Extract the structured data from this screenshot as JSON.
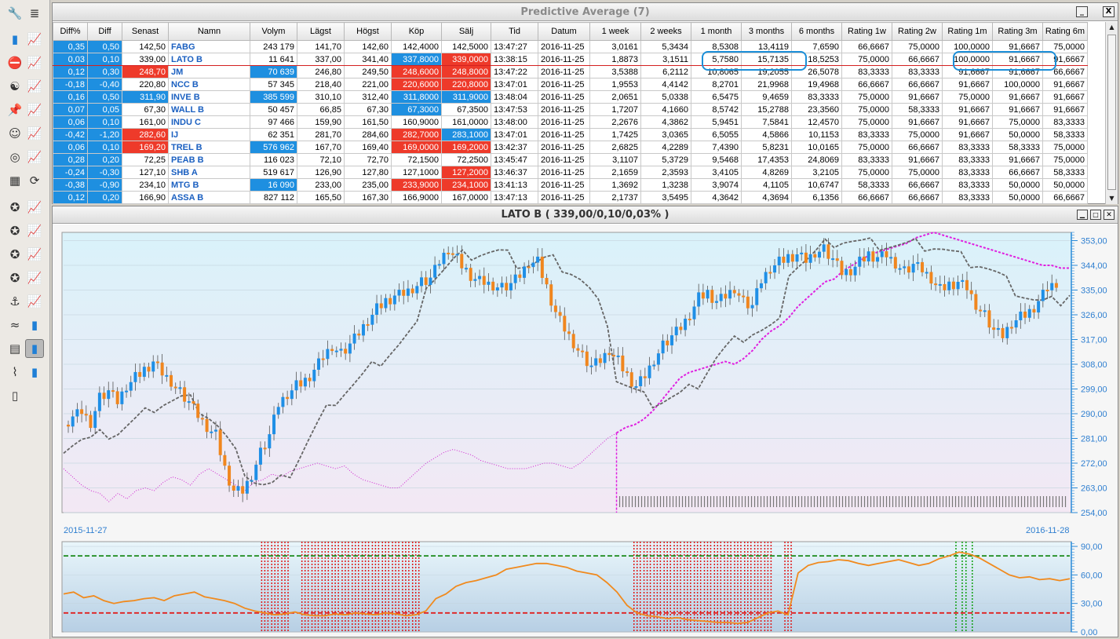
{
  "grid_window": {
    "title": "Predictive Average (7)",
    "minimize": "_",
    "close": "X"
  },
  "columns": [
    "Diff%",
    "Diff",
    "Senast",
    "Namn",
    "Volym",
    "Lägst",
    "Högst",
    "Köp",
    "Sälj",
    "Tid",
    "Datum",
    "1 week",
    "2 weeks",
    "1 month",
    "3 months",
    "6 months",
    "Rating 1w",
    "Rating 2w",
    "Rating 1m",
    "Rating 3m",
    "Rating 6m"
  ],
  "rows": [
    [
      "0,35",
      "0,50",
      "142,50",
      "FABG",
      "243 179",
      "141,70",
      "142,60",
      "142,4000",
      "142,5000",
      "13:47:27",
      "2016-11-25",
      "3,0161",
      "5,3434",
      "8,5308",
      "13,4119",
      "7,6590",
      "66,6667",
      "75,0000",
      "100,0000",
      "91,6667",
      "75,0000"
    ],
    [
      "0,03",
      "0,10",
      "339,00",
      "LATO B",
      "11 641",
      "337,00",
      "341,40",
      "337,8000",
      "339,0000",
      "13:38:15",
      "2016-11-25",
      "1,8873",
      "3,1511",
      "5,7580",
      "15,7135",
      "18,5253",
      "75,0000",
      "66,6667",
      "100,0000",
      "91,6667",
      "91,6667"
    ],
    [
      "0,12",
      "0,30",
      "248,70",
      "JM",
      "70 639",
      "246,80",
      "249,50",
      "248,6000",
      "248,8000",
      "13:47:22",
      "2016-11-25",
      "3,5388",
      "6,2112",
      "10,8065",
      "19,2055",
      "26,5078",
      "83,3333",
      "83,3333",
      "91,6667",
      "91,6667",
      "66,6667"
    ],
    [
      "-0,18",
      "-0,40",
      "220,80",
      "NCC B",
      "57 345",
      "218,40",
      "221,00",
      "220,6000",
      "220,8000",
      "13:47:01",
      "2016-11-25",
      "1,9553",
      "4,4142",
      "8,2701",
      "21,9968",
      "19,4968",
      "66,6667",
      "66,6667",
      "91,6667",
      "100,0000",
      "91,6667"
    ],
    [
      "0,16",
      "0,50",
      "311,90",
      "INVE B",
      "385 599",
      "310,10",
      "312,40",
      "311,8000",
      "311,9000",
      "13:48:04",
      "2016-11-25",
      "2,0651",
      "5,0338",
      "6,5475",
      "9,4659",
      "83,3333",
      "75,0000",
      "91,6667",
      "75,0000",
      "91,6667",
      "91,6667"
    ],
    [
      "0,07",
      "0,05",
      "67,30",
      "WALL B",
      "50 457",
      "66,85",
      "67,30",
      "67,3000",
      "67,3500",
      "13:47:53",
      "2016-11-25",
      "1,7207",
      "4,1660",
      "8,5742",
      "15,2788",
      "23,3560",
      "75,0000",
      "58,3333",
      "91,6667",
      "91,6667",
      "91,6667"
    ],
    [
      "0,06",
      "0,10",
      "161,00",
      "INDU C",
      "97 466",
      "159,90",
      "161,50",
      "160,9000",
      "161,0000",
      "13:48:00",
      "2016-11-25",
      "2,2676",
      "4,3862",
      "5,9451",
      "7,5841",
      "12,4570",
      "75,0000",
      "91,6667",
      "91,6667",
      "75,0000",
      "83,3333"
    ],
    [
      "-0,42",
      "-1,20",
      "282,60",
      "IJ",
      "62 351",
      "281,70",
      "284,60",
      "282,7000",
      "283,1000",
      "13:47:01",
      "2016-11-25",
      "1,7425",
      "3,0365",
      "6,5055",
      "4,5866",
      "10,1153",
      "83,3333",
      "75,0000",
      "91,6667",
      "50,0000",
      "58,3333"
    ],
    [
      "0,06",
      "0,10",
      "169,20",
      "TREL B",
      "576 962",
      "167,70",
      "169,40",
      "169,0000",
      "169,2000",
      "13:42:37",
      "2016-11-25",
      "2,6825",
      "4,2289",
      "7,4390",
      "5,8231",
      "10,0165",
      "75,0000",
      "66,6667",
      "83,3333",
      "58,3333",
      "75,0000"
    ],
    [
      "0,28",
      "0,20",
      "72,25",
      "PEAB B",
      "116 023",
      "72,10",
      "72,70",
      "72,1500",
      "72,2500",
      "13:45:47",
      "2016-11-25",
      "3,1107",
      "5,3729",
      "9,5468",
      "17,4353",
      "24,8069",
      "83,3333",
      "91,6667",
      "83,3333",
      "91,6667",
      "75,0000"
    ],
    [
      "-0,24",
      "-0,30",
      "127,10",
      "SHB A",
      "519 617",
      "126,90",
      "127,80",
      "127,1000",
      "127,2000",
      "13:46:37",
      "2016-11-25",
      "2,1659",
      "2,3593",
      "3,4105",
      "4,8269",
      "3,2105",
      "75,0000",
      "75,0000",
      "83,3333",
      "66,6667",
      "58,3333"
    ],
    [
      "-0,38",
      "-0,90",
      "234,10",
      "MTG B",
      "16 090",
      "233,00",
      "235,00",
      "233,9000",
      "234,1000",
      "13:41:13",
      "2016-11-25",
      "1,3692",
      "1,3238",
      "3,9074",
      "4,1105",
      "10,6747",
      "58,3333",
      "66,6667",
      "83,3333",
      "50,0000",
      "50,0000"
    ],
    [
      "0,12",
      "0,20",
      "166,90",
      "ASSA B",
      "827 112",
      "165,50",
      "167,30",
      "166,9000",
      "167,0000",
      "13:47:13",
      "2016-11-25",
      "2,1737",
      "3,5495",
      "4,3642",
      "4,3694",
      "6,1356",
      "66,6667",
      "66,6667",
      "83,3333",
      "50,0000",
      "66,6667"
    ]
  ],
  "cell_colors": {
    "1": {
      "4": "",
      "7": "blue",
      "8": "red"
    },
    "2": {
      "2": "red",
      "4": "blue",
      "7": "red",
      "8": "red"
    },
    "3": {
      "7": "red",
      "8": "red"
    },
    "4": {
      "2": "blue",
      "4": "blue",
      "7": "blue",
      "8": "blue"
    },
    "5": {
      "7": "blue"
    },
    "7": {
      "2": "red",
      "7": "red",
      "8": "blue"
    },
    "8": {
      "2": "red",
      "4": "blue",
      "7": "red",
      "8": "red"
    },
    "10": {
      "8": "red"
    },
    "11": {
      "4": "blue",
      "7": "red",
      "8": "red"
    }
  },
  "chart_window": {
    "title": "LATO B ( 339,00/0,10/0,03% )"
  },
  "chart_data": {
    "type": "candlestick",
    "y_ticks": [
      "353,00",
      "344,00",
      "335,00",
      "326,00",
      "317,00",
      "308,00",
      "299,00",
      "290,00",
      "281,00",
      "272,00",
      "263,00",
      "254,00"
    ],
    "ylim": [
      254,
      356
    ],
    "x_start_label": "2015-11-27",
    "x_end_label": "2016-11-28",
    "close_points": [
      286,
      289,
      291,
      287,
      296,
      298,
      294,
      300,
      303,
      306,
      309,
      305,
      302,
      298,
      294,
      289,
      285,
      282,
      270,
      262,
      262,
      268,
      276,
      282,
      293,
      297,
      300,
      302,
      306,
      311,
      315,
      312,
      315,
      319,
      324,
      328,
      331,
      333,
      334,
      336,
      338,
      339,
      345,
      350,
      346,
      342,
      339,
      338,
      337,
      336,
      337,
      340,
      345,
      345,
      336,
      327,
      321,
      316,
      311,
      307,
      309,
      313,
      309,
      304,
      300,
      304,
      310,
      315,
      318,
      321,
      326,
      332,
      334,
      331,
      333,
      336,
      331,
      329,
      338,
      343,
      345,
      347,
      348,
      346,
      349,
      350,
      346,
      341,
      342,
      345,
      348,
      347,
      348,
      345,
      342,
      344,
      342,
      339,
      335,
      337,
      338,
      336,
      330,
      326,
      320,
      318,
      323,
      325,
      327,
      331,
      336,
      338
    ],
    "oscillator_ticks": [
      "90,00",
      "60,00",
      "30,00",
      "0,00"
    ],
    "oscillator_ylim": [
      0,
      95
    ],
    "oscillator_levels": [
      80,
      20
    ],
    "oscillator_points": [
      40,
      42,
      36,
      38,
      33,
      30,
      32,
      33,
      35,
      36,
      33,
      38,
      40,
      42,
      37,
      35,
      33,
      30,
      25,
      22,
      20,
      18,
      19,
      21,
      18,
      17,
      17,
      19,
      18,
      20,
      19,
      18,
      20,
      19,
      17,
      18,
      22,
      35,
      40,
      48,
      52,
      54,
      57,
      60,
      66,
      68,
      70,
      72,
      72,
      70,
      68,
      64,
      62,
      60,
      52,
      42,
      28,
      20,
      17,
      16,
      14,
      15,
      13,
      12,
      11,
      10,
      10,
      9,
      10,
      15,
      20,
      22,
      18,
      62,
      70,
      73,
      74,
      76,
      75,
      72,
      70,
      72,
      74,
      76,
      73,
      70,
      72,
      77,
      80,
      84,
      82,
      78,
      72,
      66,
      60,
      57,
      58,
      55,
      56,
      54,
      56
    ]
  }
}
